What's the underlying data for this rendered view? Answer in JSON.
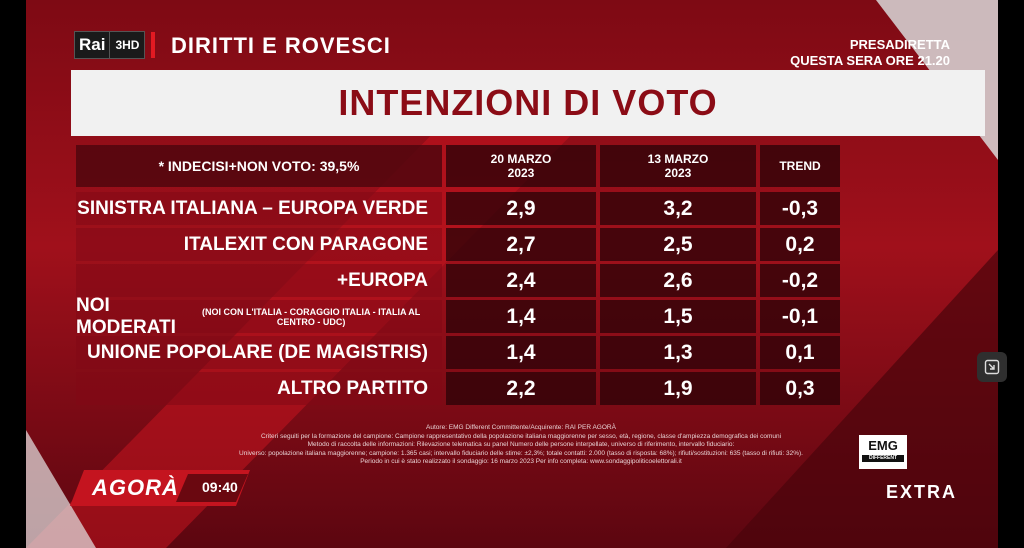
{
  "header": {
    "channel_logo": "Rai",
    "channel_number": "3HD",
    "show_title": "DIRITTI E ROVESCI",
    "promo_line1": "PRESADIRETTA",
    "promo_line2": "QUESTA SERA ORE 21.20"
  },
  "title": "INTENZIONI DI VOTO",
  "table": {
    "note": "* INDECISI+NON VOTO: 39,5%",
    "col1": [
      "20 MARZO",
      "2023"
    ],
    "col2": [
      "13 MARZO",
      "2023"
    ],
    "col3": "TREND",
    "rows": [
      {
        "party": "SINISTRA ITALIANA – EUROPA VERDE",
        "note": "",
        "v1": "2,9",
        "v2": "3,2",
        "trend": "-0,3"
      },
      {
        "party": "ITALEXIT CON PARAGONE",
        "note": "",
        "v1": "2,7",
        "v2": "2,5",
        "trend": "0,2"
      },
      {
        "party": "+EUROPA",
        "note": "",
        "v1": "2,4",
        "v2": "2,6",
        "trend": "-0,2"
      },
      {
        "party": "NOI MODERATI",
        "note": "(NOI CON L'ITALIA - CORAGGIO ITALIA - ITALIA AL CENTRO - UDC)",
        "v1": "1,4",
        "v2": "1,5",
        "trend": "-0,1"
      },
      {
        "party": "UNIONE POPOLARE (DE MAGISTRIS)",
        "note": "",
        "v1": "1,4",
        "v2": "1,3",
        "trend": "0,1"
      },
      {
        "party": "ALTRO PARTITO",
        "note": "",
        "v1": "2,2",
        "v2": "1,9",
        "trend": "0,3"
      }
    ]
  },
  "credits": [
    "Autore: EMG Different Committente/Acquirente: RAI PER AGORÀ",
    "Criteri seguiti per la formazione del campione: Campione rappresentativo della popolazione italiana maggiorenne per sesso, età, regione, classe d'ampiezza demografica dei comuni",
    "Metodo di raccolta delle informazioni: Rilevazione telematica su panel Numero delle persone interpellate, universo di riferimento, intervallo fiduciario:",
    "Universo: popolazione italiana maggiorenne; campione: 1.365 casi; intervallo fiduciario delle stime: ±2,3%; totale contatti: 2.000 (tasso di risposta: 68%); rifiuti/sostituzioni: 635 (tasso di rifiuti: 32%).",
    "Periodo in cui è stato realizzato il sondaggio: 16 marzo 2023   Per info completa: www.sondaggipoliticoelettorali.it"
  ],
  "footer": {
    "program": "AGORÀ",
    "time": "09:40",
    "pollster_logo": "EMG",
    "pollster_sub": "DIFFERENT",
    "extra": "EXTRA"
  },
  "colors": {
    "accent_red": "#e21a22",
    "title_red": "#8b0c16",
    "bg_red": "#a0101b"
  }
}
